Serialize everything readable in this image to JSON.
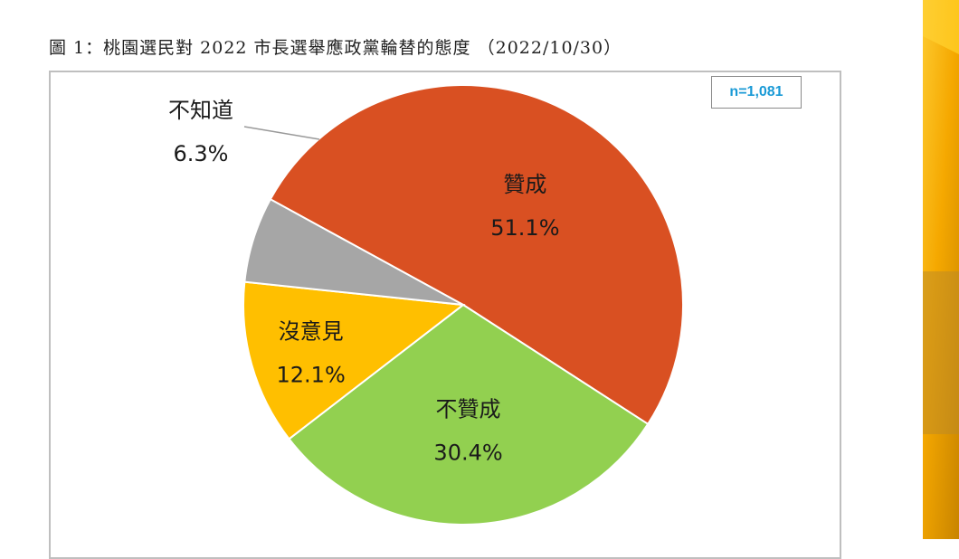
{
  "caption": "圖 1：桃園選民對 2022 市長選舉應政黨輪替的態度 （2022/10/30）",
  "sample_note": "n=1,081",
  "chart_data": {
    "type": "pie",
    "title": "",
    "slices": [
      {
        "label": "贊成",
        "value": 51.1,
        "display": "51.1%",
        "color": "#d95022"
      },
      {
        "label": "不贊成",
        "value": 30.4,
        "display": "30.4%",
        "color": "#92d050"
      },
      {
        "label": "沒意見",
        "value": 12.1,
        "display": "12.1%",
        "color": "#ffbf00"
      },
      {
        "label": "不知道",
        "value": 6.3,
        "display": "6.3%",
        "color": "#a6a6a6"
      }
    ],
    "legend": "none"
  },
  "background": {
    "accent": "#f7b500"
  }
}
